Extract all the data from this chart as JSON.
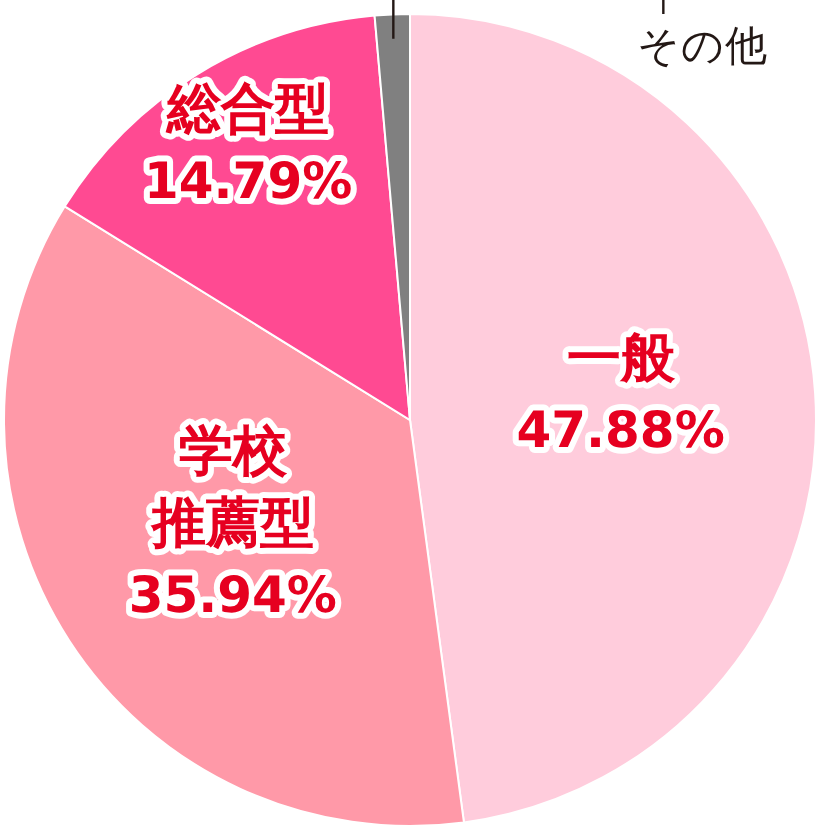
{
  "chart_data": {
    "type": "pie",
    "categories": [
      "一般",
      "学校推薦型",
      "総合型",
      "その他"
    ],
    "values": [
      47.88,
      35.94,
      14.79,
      1.39
    ],
    "colors": [
      "#ffccdc",
      "#ff99a8",
      "#ff4a92",
      "#808080"
    ],
    "value_labels": [
      "47.88%",
      "35.94%",
      "14.79%",
      null
    ]
  }
}
